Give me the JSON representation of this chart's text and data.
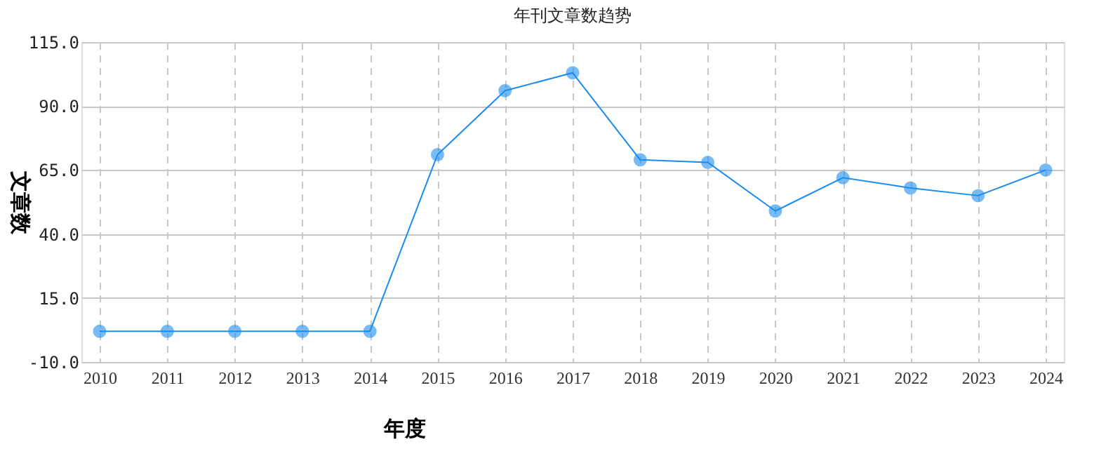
{
  "chart_data": {
    "type": "line",
    "title": "年刊文章数趋势",
    "xlabel": "年度",
    "ylabel": "文章数",
    "categories": [
      "2010",
      "2011",
      "2012",
      "2013",
      "2014",
      "2015",
      "2016",
      "2017",
      "2018",
      "2019",
      "2020",
      "2021",
      "2022",
      "2023",
      "2024"
    ],
    "series": [
      {
        "color": "#1a8cf0",
        "values": [
          2,
          2,
          2,
          2,
          2,
          71,
          96,
          103,
          69,
          68,
          49,
          62,
          58,
          55,
          65
        ]
      }
    ],
    "ylim": [
      -10,
      115
    ],
    "yticks": [
      {
        "value": -10,
        "label": "-10.0"
      },
      {
        "value": 15,
        "label": "15.0"
      },
      {
        "value": 40,
        "label": "40.0"
      },
      {
        "value": 65,
        "label": "65.0"
      },
      {
        "value": 90,
        "label": "90.0"
      },
      {
        "value": 115,
        "label": "115.0"
      }
    ],
    "grid": true,
    "legend": false,
    "marker": "circle",
    "line_style": "solid"
  }
}
